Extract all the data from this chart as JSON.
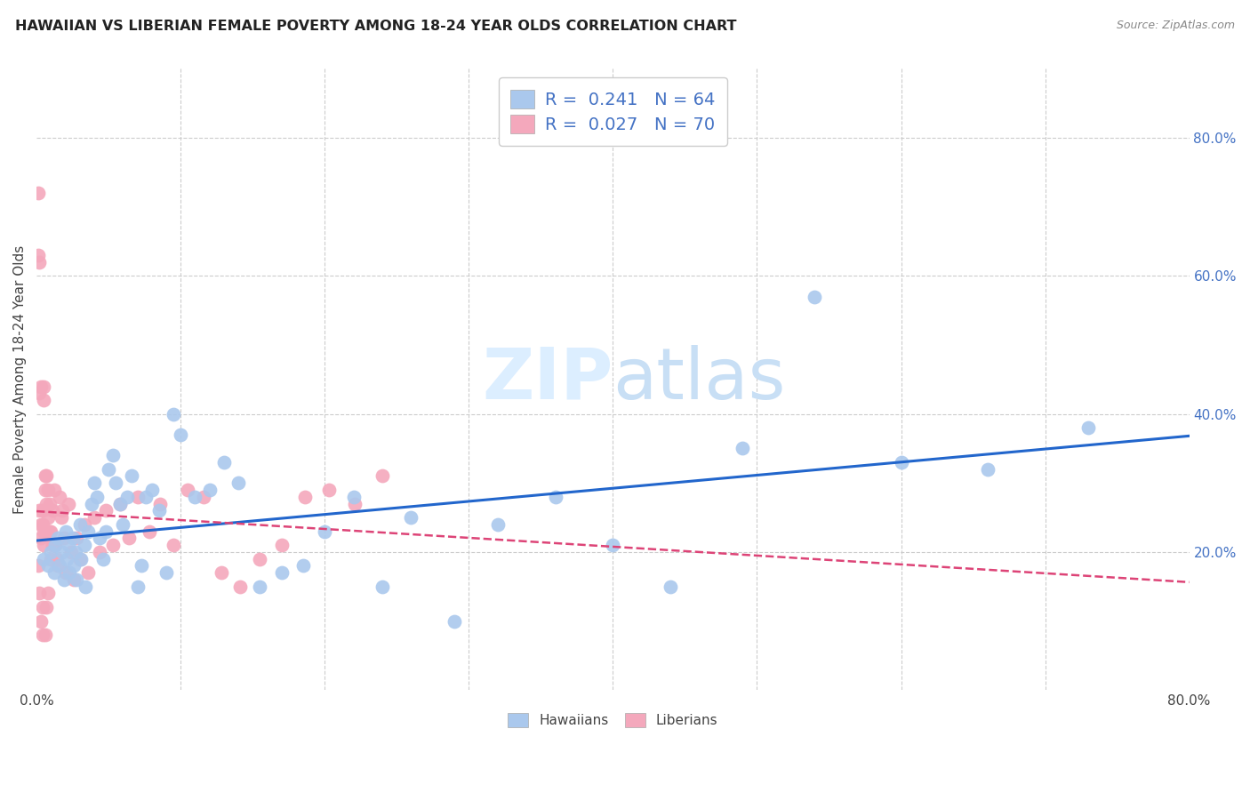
{
  "title": "HAWAIIAN VS LIBERIAN FEMALE POVERTY AMONG 18-24 YEAR OLDS CORRELATION CHART",
  "source": "Source: ZipAtlas.com",
  "ylabel": "Female Poverty Among 18-24 Year Olds",
  "right_yticks": [
    "80.0%",
    "60.0%",
    "40.0%",
    "20.0%"
  ],
  "right_ytick_vals": [
    0.8,
    0.6,
    0.4,
    0.2
  ],
  "xlim": [
    0.0,
    0.8
  ],
  "ylim": [
    0.0,
    0.9
  ],
  "grid_color": "#cccccc",
  "background_color": "#ffffff",
  "hawaiian_color": "#aac8ed",
  "liberian_color": "#f4a8bc",
  "hawaiian_line_color": "#2266cc",
  "liberian_line_color": "#dd4477",
  "watermark_color": "#dceeff",
  "hawaiian_scatter_x": [
    0.005,
    0.008,
    0.01,
    0.012,
    0.013,
    0.015,
    0.016,
    0.018,
    0.019,
    0.02,
    0.021,
    0.022,
    0.023,
    0.025,
    0.026,
    0.027,
    0.028,
    0.03,
    0.031,
    0.033,
    0.034,
    0.036,
    0.038,
    0.04,
    0.042,
    0.044,
    0.046,
    0.048,
    0.05,
    0.053,
    0.055,
    0.058,
    0.06,
    0.063,
    0.066,
    0.07,
    0.073,
    0.076,
    0.08,
    0.085,
    0.09,
    0.095,
    0.1,
    0.11,
    0.12,
    0.13,
    0.14,
    0.155,
    0.17,
    0.185,
    0.2,
    0.22,
    0.24,
    0.26,
    0.29,
    0.32,
    0.36,
    0.4,
    0.44,
    0.49,
    0.54,
    0.6,
    0.66,
    0.73
  ],
  "hawaiian_scatter_y": [
    0.19,
    0.18,
    0.2,
    0.17,
    0.21,
    0.22,
    0.18,
    0.2,
    0.16,
    0.23,
    0.19,
    0.21,
    0.17,
    0.22,
    0.18,
    0.2,
    0.16,
    0.24,
    0.19,
    0.21,
    0.15,
    0.23,
    0.27,
    0.3,
    0.28,
    0.22,
    0.19,
    0.23,
    0.32,
    0.34,
    0.3,
    0.27,
    0.24,
    0.28,
    0.31,
    0.15,
    0.18,
    0.28,
    0.29,
    0.26,
    0.17,
    0.4,
    0.37,
    0.28,
    0.29,
    0.33,
    0.3,
    0.15,
    0.17,
    0.18,
    0.23,
    0.28,
    0.15,
    0.25,
    0.1,
    0.24,
    0.28,
    0.21,
    0.15,
    0.35,
    0.57,
    0.33,
    0.32,
    0.38
  ],
  "liberian_scatter_x": [
    0.001,
    0.001,
    0.001,
    0.002,
    0.002,
    0.002,
    0.002,
    0.003,
    0.003,
    0.003,
    0.003,
    0.004,
    0.004,
    0.004,
    0.004,
    0.005,
    0.005,
    0.005,
    0.005,
    0.006,
    0.006,
    0.006,
    0.007,
    0.007,
    0.007,
    0.008,
    0.008,
    0.008,
    0.009,
    0.009,
    0.01,
    0.01,
    0.011,
    0.011,
    0.012,
    0.013,
    0.014,
    0.015,
    0.016,
    0.017,
    0.018,
    0.019,
    0.02,
    0.022,
    0.024,
    0.026,
    0.028,
    0.03,
    0.033,
    0.036,
    0.04,
    0.044,
    0.048,
    0.053,
    0.058,
    0.064,
    0.07,
    0.078,
    0.086,
    0.095,
    0.105,
    0.116,
    0.128,
    0.141,
    0.155,
    0.17,
    0.186,
    0.203,
    0.221,
    0.24
  ],
  "liberian_scatter_y": [
    0.72,
    0.63,
    0.18,
    0.62,
    0.43,
    0.26,
    0.14,
    0.44,
    0.24,
    0.22,
    0.1,
    0.26,
    0.24,
    0.12,
    0.08,
    0.44,
    0.42,
    0.23,
    0.21,
    0.31,
    0.29,
    0.08,
    0.27,
    0.31,
    0.12,
    0.25,
    0.29,
    0.14,
    0.23,
    0.27,
    0.23,
    0.19,
    0.26,
    0.21,
    0.29,
    0.21,
    0.19,
    0.18,
    0.28,
    0.25,
    0.26,
    0.22,
    0.17,
    0.27,
    0.2,
    0.16,
    0.22,
    0.19,
    0.24,
    0.17,
    0.25,
    0.2,
    0.26,
    0.21,
    0.27,
    0.22,
    0.28,
    0.23,
    0.27,
    0.21,
    0.29,
    0.28,
    0.17,
    0.15,
    0.19,
    0.21,
    0.28,
    0.29,
    0.27,
    0.31
  ]
}
